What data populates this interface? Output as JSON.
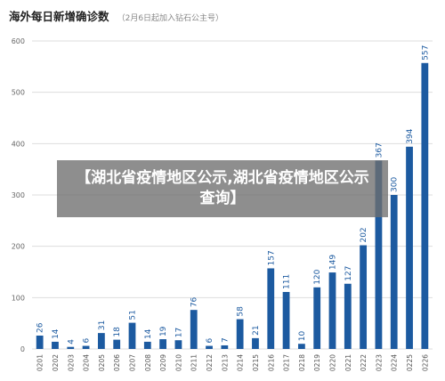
{
  "chart_data": {
    "type": "bar",
    "title": "海外每日新增确诊数",
    "subtitle": "（2月6日起加入钻石公主号）",
    "categories": [
      "0201",
      "0202",
      "0203",
      "0204",
      "0205",
      "0206",
      "0207",
      "0208",
      "0209",
      "0210",
      "0211",
      "0212",
      "0213",
      "0214",
      "0215",
      "0216",
      "0217",
      "0218",
      "0219",
      "0220",
      "0221",
      "0222",
      "0223",
      "0224",
      "0225",
      "0226"
    ],
    "values": [
      26,
      14,
      4,
      6,
      31,
      18,
      51,
      14,
      19,
      17,
      76,
      6,
      7,
      58,
      21,
      157,
      111,
      10,
      120,
      149,
      127,
      202,
      367,
      300,
      394,
      557
    ],
    "ylim": [
      0,
      600
    ],
    "yticks": [
      0,
      100,
      200,
      300,
      400,
      500,
      600
    ],
    "grid": true,
    "bar_color": "#1c5aa0",
    "grid_color": "#dddddd",
    "label_color": "#1c5aa0"
  },
  "overlay": {
    "text": "【湖北省疫情地区公示,湖北省疫情地区公示查询】"
  }
}
